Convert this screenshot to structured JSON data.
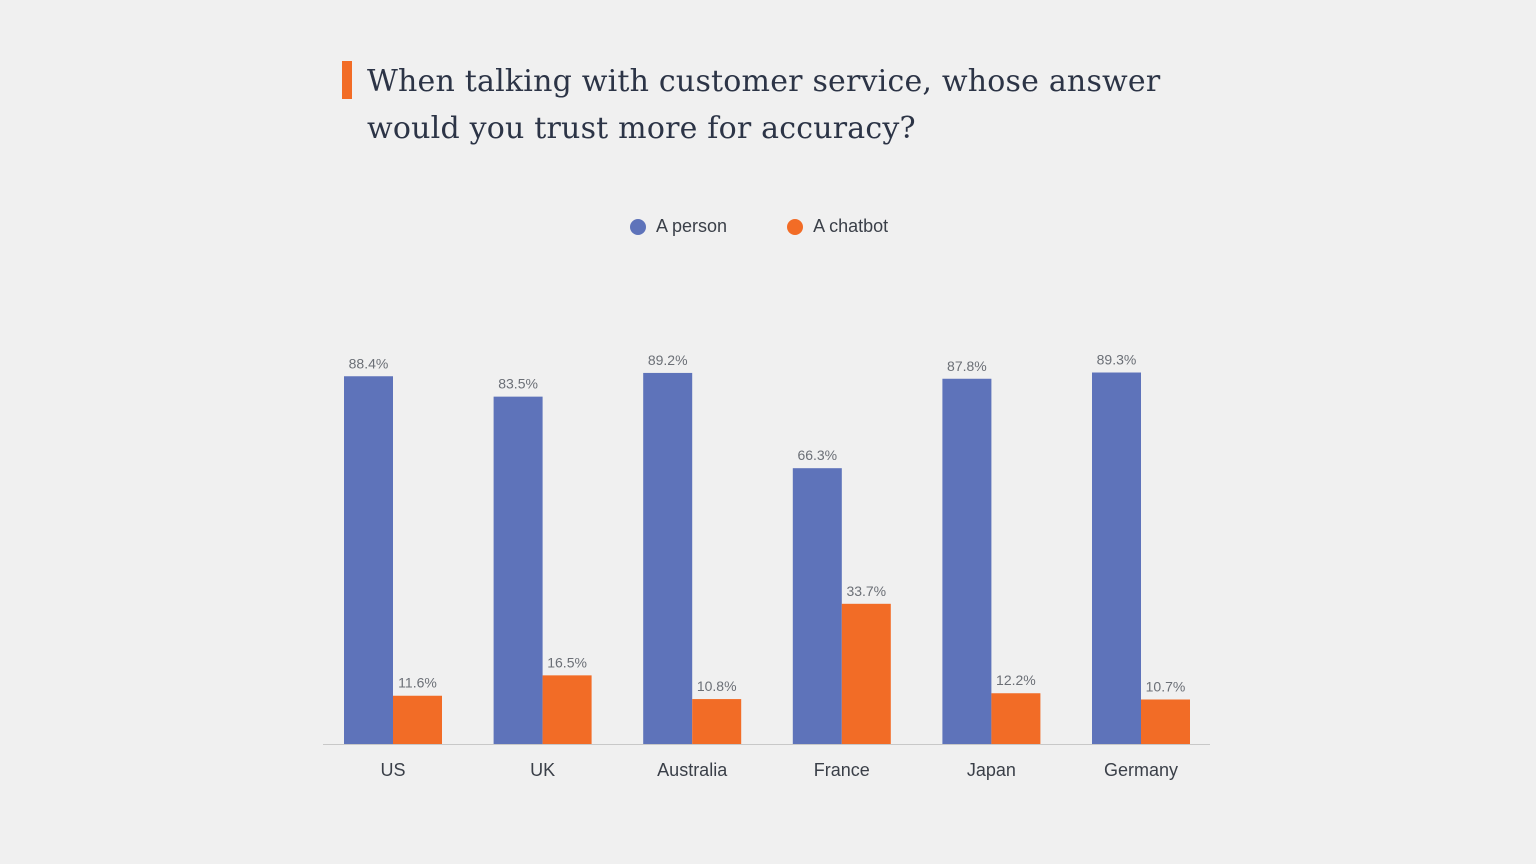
{
  "title": "When talking with customer service, whose answer would you trust more for accuracy?",
  "colors": {
    "accent": "#f26c26",
    "person": "#5e73ba",
    "chatbot": "#f26c26",
    "axis": "#c8c8c8",
    "text": "#2c3446"
  },
  "chart_data": {
    "type": "bar",
    "title": "When talking with customer service, whose answer would you trust more for accuracy?",
    "xlabel": "",
    "ylabel": "",
    "ylim": [
      0,
      100
    ],
    "grid": false,
    "legend_position": "top-center",
    "categories": [
      "US",
      "UK",
      "Australia",
      "France",
      "Japan",
      "Germany"
    ],
    "series": [
      {
        "name": "A person",
        "color": "#5e73ba",
        "values": [
          88.4,
          83.5,
          89.2,
          66.3,
          87.8,
          89.3
        ],
        "labels": [
          "88.4%",
          "83.5%",
          "89.2%",
          "66.3%",
          "87.8%",
          "89.3%"
        ]
      },
      {
        "name": "A chatbot",
        "color": "#f26c26",
        "values": [
          11.6,
          16.5,
          10.8,
          33.7,
          12.2,
          10.7
        ],
        "labels": [
          "11.6%",
          "16.5%",
          "10.8%",
          "33.7%",
          "12.2%",
          "10.7%"
        ]
      }
    ]
  }
}
